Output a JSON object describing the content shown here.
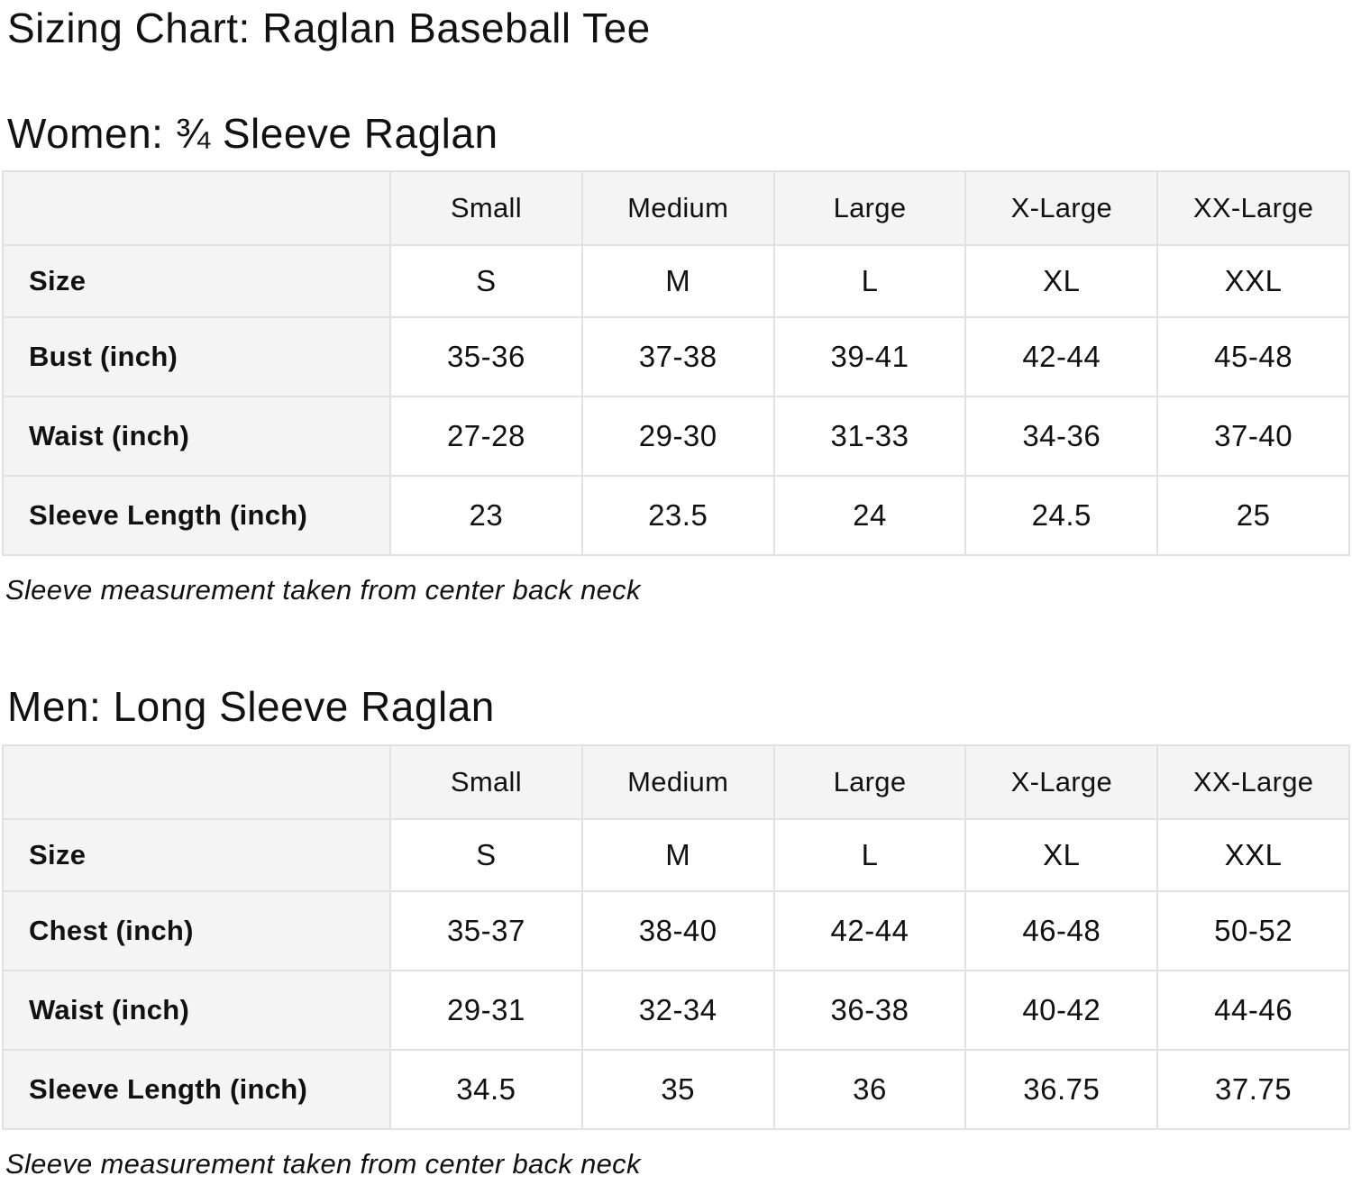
{
  "page": {
    "title": "Sizing Chart: Raglan Baseball Tee"
  },
  "colors": {
    "header_bg": "#f4f4f4",
    "cell_bg": "#ffffff",
    "border": "#e1e1e1",
    "text": "#111111"
  },
  "sections": [
    {
      "heading": "Women: ¾ Sleeve Raglan",
      "table": {
        "columns": [
          "",
          "Small",
          "Medium",
          "Large",
          "X-Large",
          "XX-Large"
        ],
        "rows": [
          {
            "label": "Size",
            "values": [
              "S",
              "M",
              "L",
              "XL",
              "XXL"
            ]
          },
          {
            "label": "Bust (inch)",
            "values": [
              "35-36",
              "37-38",
              "39-41",
              "42-44",
              "45-48"
            ]
          },
          {
            "label": "Waist (inch)",
            "values": [
              "27-28",
              "29-30",
              "31-33",
              "34-36",
              "37-40"
            ]
          },
          {
            "label": "Sleeve Length (inch)",
            "values": [
              "23",
              "23.5",
              "24",
              "24.5",
              "25"
            ]
          }
        ]
      },
      "note": "Sleeve measurement taken from center back neck"
    },
    {
      "heading": "Men: Long Sleeve Raglan",
      "table": {
        "columns": [
          "",
          "Small",
          "Medium",
          "Large",
          "X-Large",
          "XX-Large"
        ],
        "rows": [
          {
            "label": "Size",
            "values": [
              "S",
              "M",
              "L",
              "XL",
              "XXL"
            ]
          },
          {
            "label": "Chest (inch)",
            "values": [
              "35-37",
              "38-40",
              "42-44",
              "46-48",
              "50-52"
            ]
          },
          {
            "label": "Waist (inch)",
            "values": [
              "29-31",
              "32-34",
              "36-38",
              "40-42",
              "44-46"
            ]
          },
          {
            "label": "Sleeve Length (inch)",
            "values": [
              "34.5",
              "35",
              "36",
              "36.75",
              "37.75"
            ]
          }
        ]
      },
      "note": "Sleeve measurement taken from center back neck"
    }
  ]
}
